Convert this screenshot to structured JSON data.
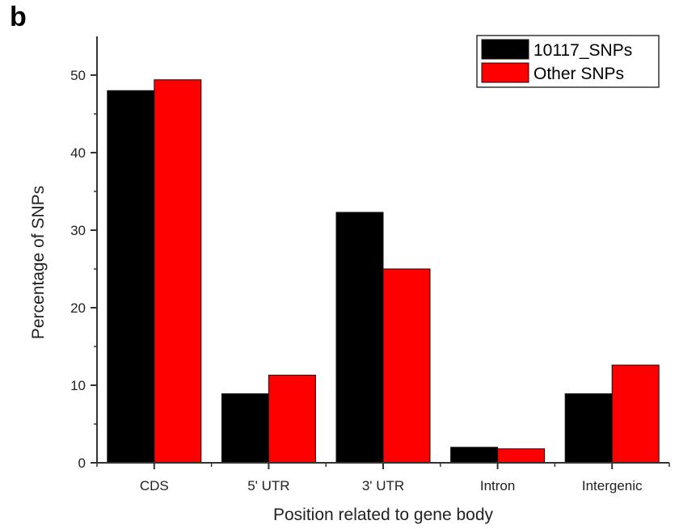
{
  "panel_label": "b",
  "chart_data": {
    "type": "bar",
    "categories": [
      "CDS",
      "5' UTR",
      "3' UTR",
      "Intron",
      "Intergenic"
    ],
    "series": [
      {
        "name": "10117_SNPs",
        "color": "#000000",
        "values": [
          48.0,
          8.9,
          32.3,
          2.0,
          8.9
        ]
      },
      {
        "name": "Other SNPs",
        "color": "#ff0000",
        "values": [
          49.4,
          11.3,
          25.0,
          1.8,
          12.6
        ]
      }
    ],
    "title": "",
    "xlabel": "Position related to gene body",
    "ylabel": "Percentage of SNPs",
    "ylim": [
      0,
      55
    ],
    "yticks": [
      0,
      10,
      20,
      30,
      40,
      50
    ],
    "grid": false,
    "legend_position": "top-right"
  }
}
